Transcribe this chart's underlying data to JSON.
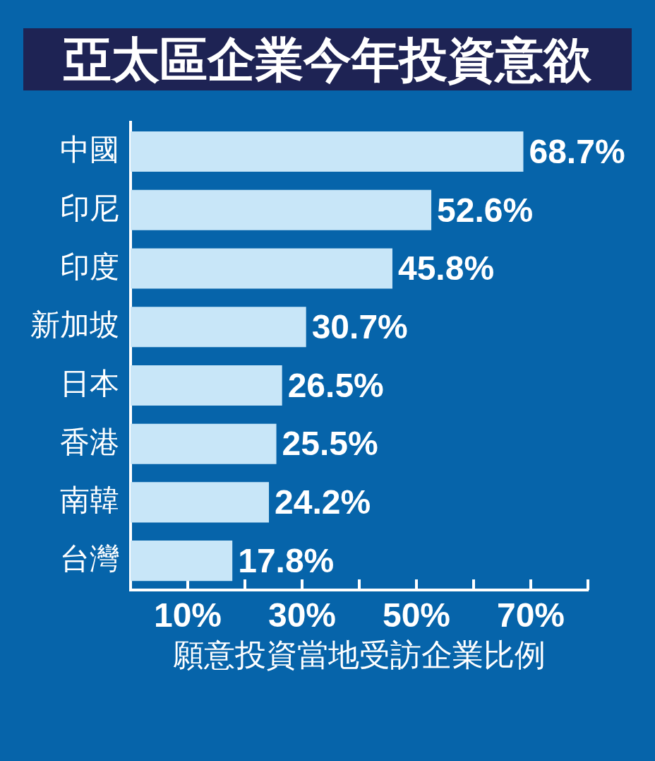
{
  "chart_data": {
    "type": "bar",
    "orientation": "horizontal",
    "title": "亞太區企業今年投資意欲",
    "xlabel": "願意投資當地受訪企業比例",
    "categories": [
      "中國",
      "印尼",
      "印度",
      "新加坡",
      "日本",
      "香港",
      "南韓",
      "台灣"
    ],
    "values": [
      68.7,
      52.6,
      45.8,
      30.7,
      26.5,
      25.5,
      24.2,
      17.8
    ],
    "color": "#c8e6f8",
    "value_labels": [
      "68.7%",
      "52.6%",
      "45.8%",
      "30.7%",
      "26.5%",
      "25.5%",
      "24.2%",
      "17.8%"
    ],
    "xlim": [
      0,
      80
    ],
    "xticks": [
      {
        "value": 10,
        "label": "10%"
      },
      {
        "value": 20,
        "label": null
      },
      {
        "value": 30,
        "label": "30%"
      },
      {
        "value": 40,
        "label": null
      },
      {
        "value": 50,
        "label": "50%"
      },
      {
        "value": 60,
        "label": null
      },
      {
        "value": 70,
        "label": "70%"
      },
      {
        "value": 80,
        "label": null
      }
    ]
  }
}
